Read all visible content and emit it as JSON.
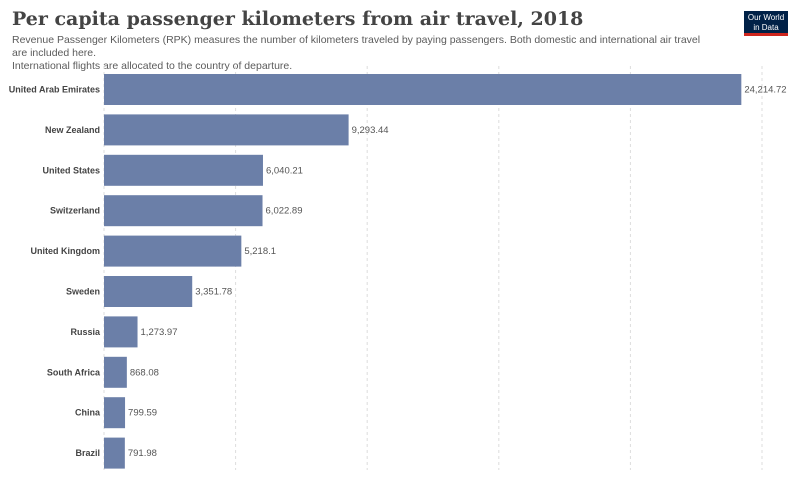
{
  "header": {
    "title": "Per capita passenger kilometers from air travel, 2018",
    "subtitle_line1": "Revenue Passenger Kilometers (RPK) measures the number of kilometers traveled by paying passengers. Both domestic and international air travel are included here.",
    "subtitle_line2": "International flights are allocated to the country of departure.",
    "logo_line1": "Our World",
    "logo_line2": "in Data"
  },
  "colors": {
    "bar": "#6b7fa8",
    "logo_bg": "#002147",
    "logo_accent": "#ce261e"
  },
  "chart_data": {
    "type": "bar",
    "orientation": "horizontal",
    "categories": [
      "United Arab Emirates",
      "New Zealand",
      "United States",
      "Switzerland",
      "United Kingdom",
      "Sweden",
      "Russia",
      "South Africa",
      "China",
      "Brazil"
    ],
    "values": [
      24214.72,
      9293.44,
      6040.21,
      6022.89,
      5218.1,
      3351.78,
      1273.97,
      868.08,
      799.59,
      791.98
    ],
    "value_labels": [
      "24,214.72",
      "9,293.44",
      "6,040.21",
      "6,022.89",
      "5,218.1",
      "3,351.78",
      "1,273.97",
      "868.08",
      "799.59",
      "791.98"
    ],
    "xlim": [
      0,
      25000
    ],
    "gridlines_at": [
      0,
      5000,
      10000,
      15000,
      20000,
      25000
    ],
    "grid": true
  }
}
